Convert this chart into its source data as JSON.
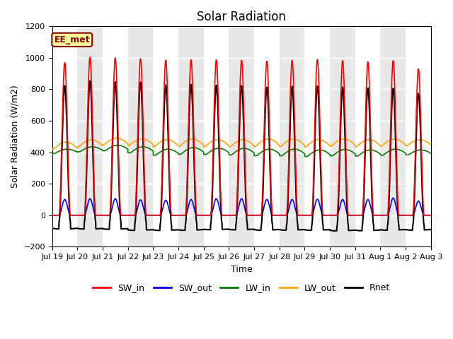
{
  "title": "Solar Radiation",
  "xlabel": "Time",
  "ylabel": "Solar Radiation (W/m2)",
  "ylim": [
    -200,
    1200
  ],
  "yticks": [
    -200,
    0,
    200,
    400,
    600,
    800,
    1000,
    1200
  ],
  "annotation_text": "EE_met",
  "legend_labels": [
    "SW_in",
    "SW_out",
    "LW_in",
    "LW_out",
    "Rnet"
  ],
  "line_colors": [
    "red",
    "blue",
    "green",
    "orange",
    "black"
  ],
  "xtick_labels": [
    "Jul 19",
    "Jul 20",
    "Jul 21",
    "Jul 22",
    "Jul 23",
    "Jul 24",
    "Jul 25",
    "Jul 26",
    "Jul 27",
    "Jul 28",
    "Jul 29",
    "Jul 30",
    "Jul 31",
    "Aug 1",
    "Aug 2",
    "Aug 3"
  ],
  "n_days": 15,
  "points_per_day": 96,
  "sw_in_peaks": [
    970,
    1005,
    1000,
    995,
    985,
    988,
    988,
    985,
    980,
    985,
    990,
    983,
    975,
    983,
    930
  ],
  "sw_out_peaks": [
    100,
    105,
    105,
    98,
    95,
    100,
    105,
    105,
    100,
    100,
    102,
    100,
    100,
    110,
    90
  ],
  "lw_in_base": [
    380,
    390,
    395,
    380,
    365,
    370,
    370,
    365,
    360,
    360,
    355,
    360,
    360,
    365,
    370
  ],
  "lw_in_amp": [
    40,
    45,
    50,
    55,
    55,
    60,
    55,
    60,
    60,
    60,
    60,
    58,
    55,
    55,
    45
  ],
  "lw_out_base": [
    400,
    415,
    430,
    425,
    415,
    420,
    415,
    415,
    415,
    415,
    415,
    420,
    415,
    420,
    425
  ],
  "lw_out_amp": [
    65,
    65,
    60,
    60,
    65,
    65,
    65,
    65,
    70,
    70,
    65,
    65,
    65,
    65,
    55
  ],
  "rnet_night": [
    -75,
    -75,
    -75,
    -80,
    -78,
    -78,
    -75,
    -75,
    -75,
    -75,
    -75,
    -78,
    -78,
    -75,
    -75
  ],
  "bg_band_color": "#e8e8e8",
  "bg_white": "#ffffff",
  "title_fontsize": 12,
  "label_fontsize": 9,
  "tick_fontsize": 8
}
